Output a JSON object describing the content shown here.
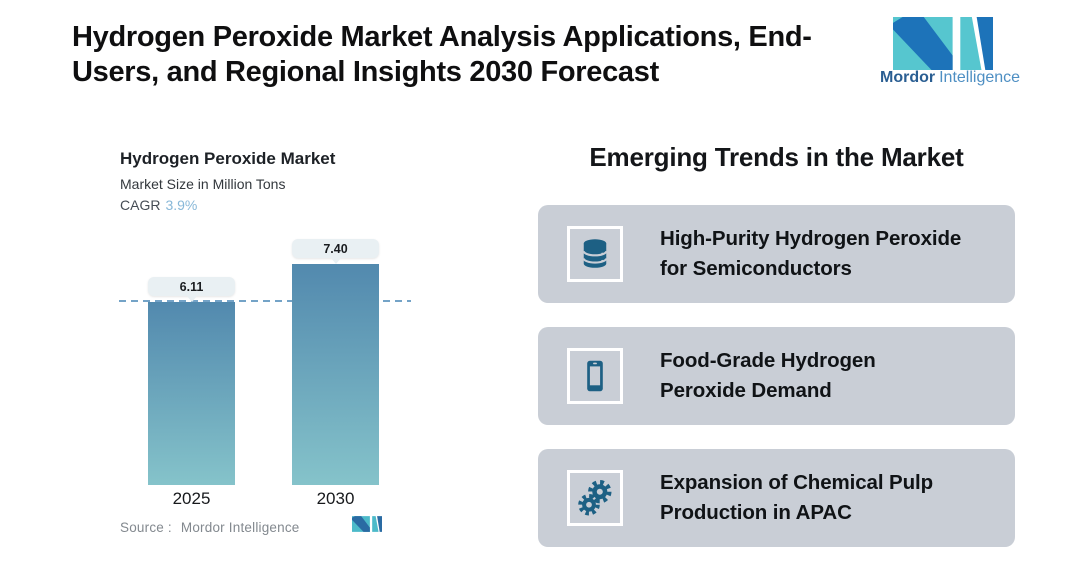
{
  "header": {
    "title_line1": "Hydrogen Peroxide Market Analysis Applications, End-",
    "title_line2": "Users, and Regional Insights 2030 Forecast",
    "brand": {
      "name_bold": "Mordor",
      "name_light": "Intelligence"
    }
  },
  "chart": {
    "title": "Hydrogen Peroxide Market",
    "subtitle": "Market Size in Million Tons",
    "cagr_label": "CAGR",
    "cagr_value": "3.9%",
    "source_label": "Source :",
    "source_value": "Mordor Intelligence"
  },
  "chart_data": {
    "type": "bar",
    "title": "Hydrogen Peroxide Market",
    "ylabel": "Market Size in Million Tons",
    "categories": [
      "2025",
      "2030"
    ],
    "values": [
      6.11,
      7.4
    ],
    "value_labels": [
      "6.11",
      "7.40"
    ],
    "cagr_pct": 3.9,
    "ylim": [
      0,
      8.5
    ],
    "grid": false,
    "reference_line_at": 6.11,
    "legend": "none",
    "bar_color_top": "#5289ae",
    "bar_color_bottom": "#85c3ca"
  },
  "trends": {
    "heading": "Emerging Trends in the Market",
    "cards": [
      {
        "icon": "database-icon",
        "line1": "High-Purity Hydrogen Peroxide",
        "line2": "for Semiconductors"
      },
      {
        "icon": "smartphone-icon",
        "line1": "Food-Grade Hydrogen",
        "line2": "Peroxide Demand"
      },
      {
        "icon": "gears-icon",
        "line1": "Expansion of Chemical Pulp",
        "line2": "Production in APAC"
      }
    ]
  },
  "colors": {
    "accent_teal": "#56c6cf",
    "accent_blue": "#1d73b9",
    "icon_blue": "#1d6084",
    "card_bg": "#c9ced6",
    "cagr_value_color": "#88b8d8",
    "dashed_line": "#74a3c7",
    "callout_bg": "#e9f0f3"
  }
}
